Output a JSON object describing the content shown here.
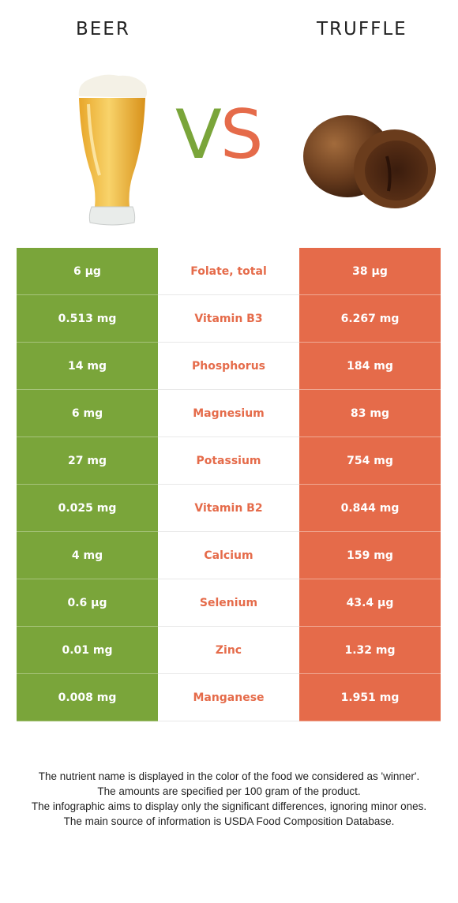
{
  "header": {
    "left_title": "BEER",
    "right_title": "TRUFFLE",
    "vs_v": "V",
    "vs_s": "S",
    "colors": {
      "winner_left": "#7aa53a",
      "winner_right": "#e56b4a"
    }
  },
  "rows": [
    {
      "left": "6 µg",
      "nutrient": "Folate, total",
      "right": "38 µg"
    },
    {
      "left": "0.513 mg",
      "nutrient": "Vitamin B3",
      "right": "6.267 mg"
    },
    {
      "left": "14 mg",
      "nutrient": "Phosphorus",
      "right": "184 mg"
    },
    {
      "left": "6 mg",
      "nutrient": "Magnesium",
      "right": "83 mg"
    },
    {
      "left": "27 mg",
      "nutrient": "Potassium",
      "right": "754 mg"
    },
    {
      "left": "0.025 mg",
      "nutrient": "Vitamin B2",
      "right": "0.844 mg"
    },
    {
      "left": "4 mg",
      "nutrient": "Calcium",
      "right": "159 mg"
    },
    {
      "left": "0.6 µg",
      "nutrient": "Selenium",
      "right": "43.4 µg"
    },
    {
      "left": "0.01 mg",
      "nutrient": "Zinc",
      "right": "1.32 mg"
    },
    {
      "left": "0.008 mg",
      "nutrient": "Manganese",
      "right": "1.951 mg"
    }
  ],
  "footer": {
    "line1": "The nutrient name is displayed in the color of the food we considered as 'winner'.",
    "line2": "The amounts are specified per 100 gram of the product.",
    "line3": "The infographic aims to display only the significant differences, ignoring minor ones.",
    "line4": "The main source of information is USDA Food Composition Database."
  }
}
